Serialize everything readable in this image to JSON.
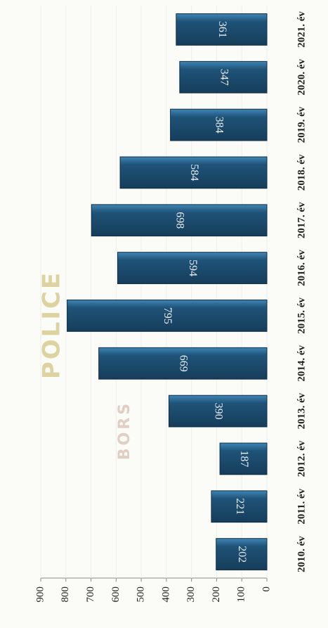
{
  "chart_data": {
    "type": "bar",
    "orientation": "rotated",
    "categories": [
      "2010. év",
      "2011. év",
      "2012. év",
      "2013. év",
      "2014. év",
      "2015. év",
      "2016. év",
      "2017. év",
      "2018. év",
      "2019. év",
      "2020. év",
      "2021. év"
    ],
    "values": [
      202,
      221,
      187,
      390,
      669,
      795,
      594,
      698,
      584,
      384,
      347,
      361
    ],
    "color": "#1f5378",
    "ylim": [
      0,
      900
    ],
    "yticks": [
      0,
      100,
      200,
      300,
      400,
      500,
      600,
      700,
      800,
      900
    ],
    "watermark": [
      "POLICE",
      "BORS"
    ]
  }
}
